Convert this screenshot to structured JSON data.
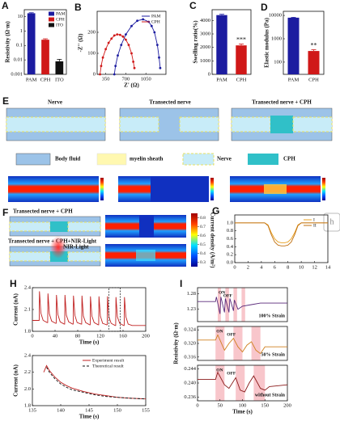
{
  "chart_data": [
    {
      "type": "bar",
      "panel": "A",
      "ylabel": "Resistivity (Ω·m)",
      "categories": [
        "PAM",
        "CPH",
        "ITO"
      ],
      "values": [
        17,
        0.25,
        0.008
      ],
      "errors": [
        1.5,
        0.04,
        0.003
      ],
      "colors": [
        "#1c1ca0",
        "#d01818",
        "#111111"
      ],
      "ylog": true,
      "ylim": [
        0.001,
        30
      ],
      "yticks": [
        0.001,
        0.01,
        0.1,
        1,
        10
      ],
      "legend": true
    },
    {
      "type": "line",
      "panel": "B",
      "xlabel": "Z' (Ω)",
      "ylabel": "-Z'' (Ω)",
      "markers": true,
      "legend": true,
      "series": [
        {
          "name": "PAM",
          "color": "#1c1ca0",
          "x": [
            500,
            520,
            560,
            620,
            700,
            800,
            900,
            1000,
            1100,
            1150,
            1200,
            1250,
            1280,
            1300
          ],
          "values": [
            0,
            40,
            90,
            140,
            190,
            230,
            255,
            262,
            250,
            230,
            200,
            140,
            80,
            30
          ]
        },
        {
          "name": "CPH",
          "color": "#d01818",
          "x": [
            250,
            270,
            300,
            350,
            400,
            450,
            500,
            550,
            600,
            650,
            700,
            750,
            800,
            830,
            850
          ],
          "values": [
            0,
            40,
            80,
            120,
            150,
            170,
            185,
            190,
            188,
            180,
            165,
            140,
            100,
            60,
            30
          ]
        }
      ],
      "xlim": [
        200,
        1400
      ],
      "xticks": [
        350,
        700,
        1050
      ],
      "ylim": [
        0,
        300
      ],
      "yticks": [
        0,
        100,
        200
      ]
    },
    {
      "type": "bar",
      "panel": "C",
      "ylabel": "Swelling ratio(%)",
      "categories": [
        "PAM",
        "CPH"
      ],
      "values": [
        4400,
        2150
      ],
      "errors": [
        60,
        100
      ],
      "colors": [
        "#1c1ca0",
        "#d01818"
      ],
      "ylim": [
        0,
        4800
      ],
      "yticks": [
        0,
        1000,
        2000,
        3000,
        4000
      ],
      "annotations": [
        {
          "text": "***",
          "x": "CPH"
        }
      ]
    },
    {
      "type": "bar",
      "panel": "D",
      "ylabel": "Elastic modulus (Pa)",
      "categories": [
        "PAM",
        "CPH"
      ],
      "values": [
        8000,
        300
      ],
      "errors": [
        300,
        40
      ],
      "colors": [
        "#1c1ca0",
        "#d01818"
      ],
      "ylog": true,
      "ylim": [
        30,
        15000
      ],
      "yticks": [
        100,
        1000,
        10000
      ],
      "annotations": [
        {
          "text": "**",
          "x": "CPH"
        }
      ]
    },
    {
      "type": "line",
      "panel": "G",
      "legend": true,
      "x": [
        0,
        4.5,
        5,
        5.5,
        6,
        6.5,
        7,
        7.5,
        8,
        8.5,
        9,
        9.5,
        10,
        14
      ],
      "series": [
        {
          "name": "I",
          "color": "#e8a020",
          "values": [
            1,
            1,
            0.95,
            0.75,
            0.6,
            0.52,
            0.5,
            0.5,
            0.52,
            0.6,
            0.75,
            0.95,
            1,
            1
          ]
        },
        {
          "name": "II",
          "color": "#c07010",
          "values": [
            1,
            1,
            0.93,
            0.7,
            0.52,
            0.44,
            0.42,
            0.42,
            0.44,
            0.52,
            0.7,
            0.93,
            1,
            1
          ]
        }
      ],
      "xlim": [
        0,
        14
      ],
      "xticks": [
        0,
        2,
        4,
        6,
        8,
        10,
        12,
        14
      ],
      "ylim": [
        0,
        1.2
      ],
      "yticks": [
        {
          "value": 0,
          "label": "0.0"
        },
        0.2,
        0.4,
        0.6,
        0.8,
        {
          "value": 1,
          "label": "1.0"
        }
      ]
    },
    {
      "type": "line",
      "panel": "H",
      "xlabel": "Time (s)",
      "ylabel": "Current (nA)",
      "series": [
        {
          "name": "Current",
          "color": "#c02020",
          "x": [
            0,
            12,
            12.5,
            15,
            19,
            26,
            27,
            27.5,
            30,
            34,
            41,
            42,
            42.5,
            45,
            49,
            56,
            57,
            57.5,
            60,
            64,
            71,
            72,
            72.5,
            75,
            79,
            86,
            87,
            87.5,
            90,
            94,
            101,
            102,
            102.5,
            105,
            109,
            116,
            117,
            117.5,
            120,
            124,
            131,
            132,
            132.5,
            135,
            139,
            146,
            147,
            147.5,
            150,
            154,
            161,
            162,
            162.5,
            165,
            169,
            176,
            190,
            200
          ],
          "values": [
            1.95,
            1.95,
            2.35,
            2.05,
            1.95,
            1.92,
            1.92,
            2.32,
            2.04,
            1.94,
            1.91,
            1.91,
            2.3,
            2.03,
            1.93,
            1.9,
            1.9,
            2.3,
            2.02,
            1.93,
            1.9,
            1.9,
            2.29,
            2.02,
            1.92,
            1.9,
            1.9,
            2.29,
            2.01,
            1.92,
            1.89,
            1.89,
            2.28,
            2.01,
            1.92,
            1.89,
            1.89,
            2.28,
            2.01,
            1.91,
            1.89,
            1.89,
            2.28,
            2.0,
            1.91,
            1.88,
            1.88,
            2.27,
            2.0,
            1.91,
            1.88,
            1.88,
            2.27,
            2.0,
            1.9,
            1.88,
            1.88,
            1.88
          ]
        }
      ],
      "zoom_range": [
        135,
        155
      ],
      "xlim": [
        0,
        200
      ],
      "xticks": [
        0,
        40,
        80,
        120,
        160,
        200
      ],
      "ylim": [
        1.8,
        2.4
      ],
      "yticks": [
        1.8,
        2.1,
        2.4
      ]
    },
    {
      "type": "line",
      "xlabel": "Time (s)",
      "ylabel": "Current (nA)",
      "legend": true,
      "series": [
        {
          "name": "Experiment result",
          "color": "#c02020",
          "x": [
            137,
            137.5,
            138,
            139,
            140,
            141,
            142,
            144,
            146,
            148,
            150,
            152,
            155
          ],
          "values": [
            2.2,
            2.28,
            2.22,
            2.14,
            2.08,
            2.04,
            2.01,
            1.97,
            1.94,
            1.92,
            1.9,
            1.89,
            1.88
          ]
        },
        {
          "name": "Theoretical result",
          "color": "#111111",
          "dash": true,
          "x": [
            137.5,
            138,
            139,
            140,
            141,
            142,
            144,
            146,
            148,
            150,
            152,
            155
          ],
          "values": [
            2.26,
            2.2,
            2.12,
            2.06,
            2.02,
            1.99,
            1.96,
            1.93,
            1.91,
            1.9,
            1.89,
            1.88
          ]
        }
      ],
      "xlim": [
        135,
        155
      ],
      "xticks": [
        135,
        140,
        145,
        150,
        155
      ],
      "ylim": [
        1.8,
        2.4
      ],
      "yticks": [
        1.8,
        {
          "value": 2,
          "label": "2.0"
        },
        2.2,
        2.4
      ]
    },
    {
      "type": "line",
      "panel": "I",
      "on_label": "ON",
      "off_label": "OFF",
      "note": "100% Strain",
      "spans": [
        [
          45,
          52
        ],
        [
          62,
          70
        ],
        [
          80,
          88
        ],
        [
          98,
          106
        ]
      ],
      "series": [
        {
          "name": "100% Strain",
          "color": "#5a2a7a",
          "x": [
            0,
            40,
            42,
            50,
            52,
            60,
            62,
            70,
            72,
            80,
            82,
            90,
            100,
            120,
            140,
            160,
            200
          ],
          "values": [
            1.255,
            1.255,
            1.27,
            1.215,
            1.27,
            1.22,
            1.265,
            1.22,
            1.265,
            1.225,
            1.26,
            1.23,
            1.24,
            1.245,
            1.25,
            1.25,
            1.25
          ]
        }
      ],
      "xlim": [
        0,
        200
      ],
      "ylim": [
        1.19,
        1.3
      ],
      "yticks": [
        1.23,
        1.28
      ]
    },
    {
      "type": "line",
      "ylabel": "Resistivity (Ω·m)",
      "on_label": "ON",
      "off_label": "OFF",
      "note": "50% Strain",
      "spans": [
        [
          40,
          60
        ],
        [
          80,
          100
        ],
        [
          120,
          140
        ]
      ],
      "series": [
        {
          "name": "50% Strain",
          "color": "#d08020",
          "x": [
            0,
            40,
            45,
            55,
            60,
            70,
            80,
            90,
            100,
            110,
            120,
            130,
            140,
            150,
            200
          ],
          "values": [
            0.321,
            0.321,
            0.3225,
            0.3195,
            0.318,
            0.32,
            0.3215,
            0.319,
            0.3175,
            0.3195,
            0.3205,
            0.318,
            0.317,
            0.319,
            0.319
          ]
        }
      ],
      "xlim": [
        0,
        200
      ],
      "ylim": [
        0.315,
        0.325
      ],
      "yticks": [
        0.316,
        {
          "value": 0.32,
          "label": "0.320"
        },
        0.324
      ]
    },
    {
      "type": "line",
      "xlabel": "Time (s)",
      "on_label": "ON",
      "off_label": "OFF",
      "note": "without Strain",
      "spans": [
        [
          40,
          60
        ],
        [
          85,
          105
        ],
        [
          125,
          150
        ]
      ],
      "series": [
        {
          "name": "without Strain",
          "color": "#8a1a1a",
          "x": [
            0,
            40,
            45,
            60,
            70,
            85,
            95,
            105,
            115,
            125,
            140,
            150,
            160,
            200
          ],
          "values": [
            0.241,
            0.241,
            0.243,
            0.2395,
            0.2385,
            0.2415,
            0.238,
            0.2375,
            0.24,
            0.242,
            0.2385,
            0.238,
            0.239,
            0.2395
          ]
        }
      ],
      "xlim": [
        0,
        200
      ],
      "xticks": [
        0,
        50,
        100,
        150,
        200
      ],
      "ylim": [
        0.235,
        0.245
      ],
      "yticks": [
        0.236,
        {
          "value": 0.24,
          "label": "0.240"
        },
        0.244
      ]
    }
  ],
  "diagrams": {
    "E": {
      "panel": "E",
      "titles": [
        "Nerve",
        "Transected nerve",
        "Transected nerve + CPH"
      ],
      "legend": [
        "Body fluid",
        "myelin sheath",
        "Nerve",
        "CPH"
      ]
    },
    "F": {
      "panel": "F",
      "titles": [
        "Transected nerve + CPH",
        "Transected nerve + CPH+NIR-Light"
      ],
      "light": "NIR-Light",
      "colorbar": {
        "label": "Current density (A/m²)",
        "lim": [
          0.25,
          0.85
        ],
        "ticks": [
          0.3,
          0.4,
          0.5,
          0.6,
          0.7,
          0.8
        ]
      }
    }
  },
  "side_tab": "h"
}
